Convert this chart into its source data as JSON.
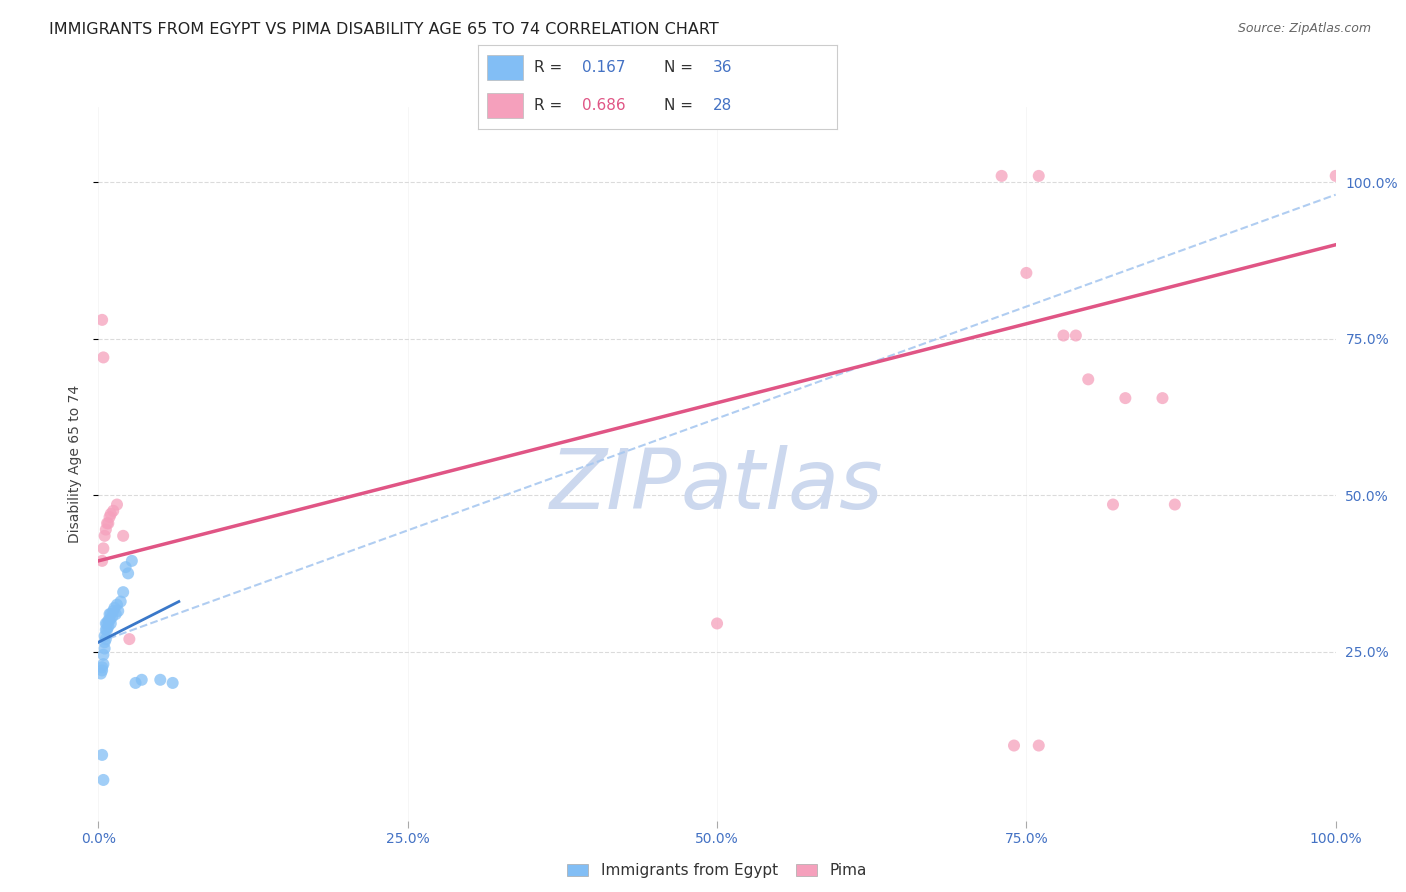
{
  "title": "IMMIGRANTS FROM EGYPT VS PIMA DISABILITY AGE 65 TO 74 CORRELATION CHART",
  "source": "Source: ZipAtlas.com",
  "ylabel": "Disability Age 65 to 74",
  "xlim": [
    0.0,
    1.0
  ],
  "ylim": [
    -0.05,
    1.15
  ],
  "plot_ylim": [
    0.0,
    1.1
  ],
  "x_tick_positions": [
    0.0,
    0.25,
    0.5,
    0.75,
    1.0
  ],
  "x_tick_labels": [
    "0.0%",
    "25.0%",
    "50.0%",
    "75.0%",
    "100.0%"
  ],
  "y_tick_positions_right": [
    0.25,
    0.5,
    0.75,
    1.0
  ],
  "y_tick_labels_right": [
    "25.0%",
    "50.0%",
    "75.0%",
    "100.0%"
  ],
  "blue_points": [
    [
      0.002,
      0.215
    ],
    [
      0.003,
      0.22
    ],
    [
      0.003,
      0.225
    ],
    [
      0.004,
      0.23
    ],
    [
      0.004,
      0.245
    ],
    [
      0.005,
      0.255
    ],
    [
      0.005,
      0.265
    ],
    [
      0.005,
      0.275
    ],
    [
      0.006,
      0.27
    ],
    [
      0.006,
      0.285
    ],
    [
      0.006,
      0.295
    ],
    [
      0.007,
      0.285
    ],
    [
      0.007,
      0.295
    ],
    [
      0.008,
      0.29
    ],
    [
      0.008,
      0.3
    ],
    [
      0.009,
      0.3
    ],
    [
      0.009,
      0.31
    ],
    [
      0.01,
      0.295
    ],
    [
      0.01,
      0.31
    ],
    [
      0.011,
      0.305
    ],
    [
      0.012,
      0.315
    ],
    [
      0.013,
      0.32
    ],
    [
      0.014,
      0.31
    ],
    [
      0.015,
      0.325
    ],
    [
      0.016,
      0.315
    ],
    [
      0.018,
      0.33
    ],
    [
      0.02,
      0.345
    ],
    [
      0.022,
      0.385
    ],
    [
      0.024,
      0.375
    ],
    [
      0.027,
      0.395
    ],
    [
      0.03,
      0.2
    ],
    [
      0.035,
      0.205
    ],
    [
      0.05,
      0.205
    ],
    [
      0.003,
      0.085
    ],
    [
      0.004,
      0.045
    ],
    [
      0.06,
      0.2
    ]
  ],
  "pink_points": [
    [
      0.003,
      0.395
    ],
    [
      0.004,
      0.415
    ],
    [
      0.005,
      0.435
    ],
    [
      0.006,
      0.445
    ],
    [
      0.007,
      0.455
    ],
    [
      0.008,
      0.455
    ],
    [
      0.009,
      0.465
    ],
    [
      0.01,
      0.47
    ],
    [
      0.012,
      0.475
    ],
    [
      0.015,
      0.485
    ],
    [
      0.02,
      0.435
    ],
    [
      0.025,
      0.27
    ],
    [
      0.003,
      0.78
    ],
    [
      0.004,
      0.72
    ],
    [
      0.5,
      0.295
    ],
    [
      0.74,
      0.1
    ],
    [
      0.76,
      0.1
    ],
    [
      0.8,
      0.685
    ],
    [
      0.82,
      0.485
    ],
    [
      0.87,
      0.485
    ],
    [
      0.73,
      1.01
    ],
    [
      0.76,
      1.01
    ],
    [
      1.0,
      1.01
    ],
    [
      0.75,
      0.855
    ],
    [
      0.78,
      0.755
    ],
    [
      0.79,
      0.755
    ],
    [
      0.83,
      0.655
    ],
    [
      0.86,
      0.655
    ]
  ],
  "blue_solid_line": {
    "x": [
      0.0,
      0.065
    ],
    "y": [
      0.265,
      0.33
    ]
  },
  "blue_dashed_line": {
    "x": [
      0.0,
      1.0
    ],
    "y": [
      0.265,
      0.98
    ]
  },
  "pink_solid_line": {
    "x": [
      0.0,
      1.0
    ],
    "y": [
      0.395,
      0.9
    ]
  },
  "dot_color_blue": "#82bef5",
  "dot_color_pink": "#f5a0bc",
  "line_color_blue": "#3a78c9",
  "line_color_pink": "#e05585",
  "line_color_dashed": "#a8c8f0",
  "background_color": "#ffffff",
  "grid_color": "#cccccc",
  "title_fontsize": 11.5,
  "axis_label_fontsize": 10,
  "tick_fontsize": 10,
  "legend_fontsize": 11,
  "watermark": "ZIPatlas",
  "watermark_color": "#ccd8ee",
  "watermark_fontsize": 60,
  "legend_R1": "0.167",
  "legend_N1": "36",
  "legend_R2": "0.686",
  "legend_N2": "28",
  "legend_color_R1": "#4472c4",
  "legend_color_R2": "#e05585",
  "legend_color_N": "#4472c4",
  "bottom_legend_labels": [
    "Immigrants from Egypt",
    "Pima"
  ]
}
